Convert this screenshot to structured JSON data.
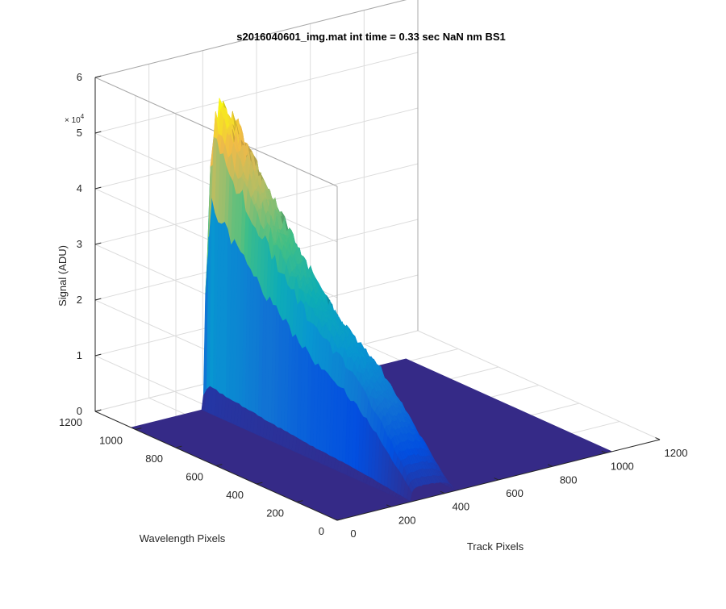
{
  "chart_data": {
    "type": "surface",
    "title": "s2016040601_img.mat int time = 0.33 sec  NaN nm BS1",
    "xlabel": "Track Pixels",
    "ylabel": "Wavelength Pixels",
    "zlabel": "Signal (ADU)",
    "z_exponent": "× 10",
    "z_exponent_power": "4",
    "xlim": [
      0,
      1200
    ],
    "ylim": [
      0,
      1200
    ],
    "zlim": [
      0,
      60000
    ],
    "x_ticks": [
      "0",
      "200",
      "400",
      "600",
      "800",
      "1000",
      "1200"
    ],
    "y_ticks": [
      "0",
      "200",
      "400",
      "600",
      "800",
      "1000",
      "1200"
    ],
    "z_ticks": [
      "0",
      "1",
      "2",
      "3",
      "4",
      "5",
      "6"
    ],
    "grid": true,
    "colormap": "parula",
    "surface_extent": {
      "x": [
        0,
        1024
      ],
      "y": [
        0,
        1024
      ]
    },
    "signal_band": {
      "x_range": [
        270,
        430
      ],
      "z_peak_low_y": 20000,
      "z_peak_high_y": 55000
    },
    "track_profile": {
      "x": [
        270,
        280,
        290,
        300,
        310,
        330,
        350,
        370,
        390,
        410,
        420,
        430,
        440
      ],
      "weight": [
        0,
        0.85,
        0.96,
        0.99,
        1.0,
        0.99,
        0.97,
        0.93,
        0.86,
        0.72,
        0.58,
        0.3,
        0
      ]
    },
    "wavelength_profile": {
      "y": [
        0,
        100,
        200,
        300,
        400,
        500,
        600,
        700,
        800,
        900,
        960,
        1000,
        1024
      ],
      "z": [
        2500,
        9000,
        15000,
        20000,
        23000,
        26000,
        31000,
        36000,
        42000,
        48000,
        52000,
        55000,
        30000
      ]
    }
  }
}
